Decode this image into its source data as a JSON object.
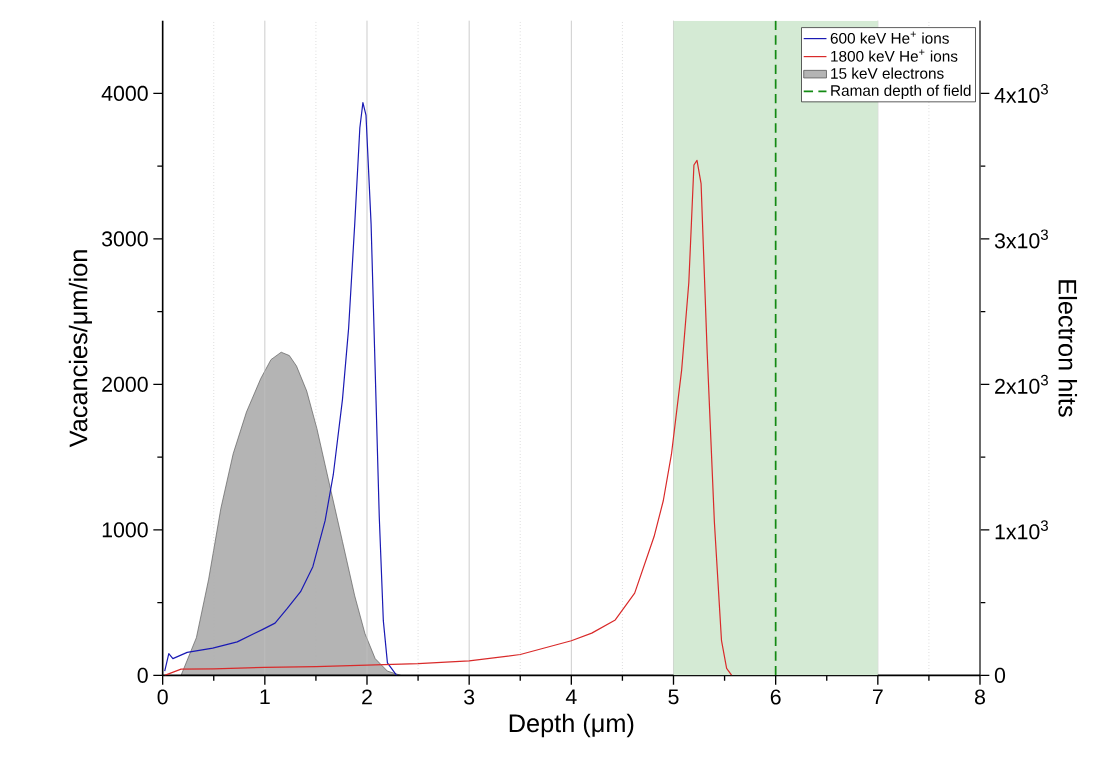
{
  "chart_data": {
    "type": "line",
    "xlabel": "Depth (μm)",
    "ylabel": "Vacancies/μm/ion",
    "y2label": "Electron hits",
    "xlim": [
      0,
      8
    ],
    "ylim": [
      0,
      4500
    ],
    "y2lim": [
      0,
      4500
    ],
    "xticks": [
      0,
      {
        "value": 0.5,
        "label": null
      },
      1,
      {
        "value": 1.5,
        "label": null
      },
      2,
      {
        "value": 2.5,
        "label": null
      },
      3,
      {
        "value": 3.5,
        "label": null
      },
      4,
      {
        "value": 4.5,
        "label": null
      },
      5,
      {
        "value": 5.5,
        "label": null
      },
      6,
      {
        "value": 6.5,
        "label": null
      },
      7,
      {
        "value": 7.5,
        "label": null
      },
      8
    ],
    "yticks": [
      0,
      {
        "value": 500,
        "label": null
      },
      1000,
      {
        "value": 1500,
        "label": null
      },
      2000,
      {
        "value": 2500,
        "label": null
      },
      3000,
      {
        "value": 3500,
        "label": null
      },
      4000
    ],
    "y2ticks": [
      0,
      {
        "value": 500,
        "label": null
      },
      {
        "value": 1000,
        "label": "1x10$^{3}$"
      },
      {
        "value": 1500,
        "label": null
      },
      {
        "value": 2000,
        "label": "2x10$^{3}$"
      },
      {
        "value": 2500,
        "label": null
      },
      {
        "value": 3000,
        "label": "3x10$^{3}$"
      },
      {
        "value": 3500,
        "label": null
      },
      {
        "value": 4000,
        "label": "4x10$^{3}$"
      }
    ],
    "grid": "x",
    "legend": "top right",
    "series": [
      {
        "name": "600 keV He$^{+}$ ions",
        "color": "#1a1ab4",
        "x": [
          0.02,
          0.06,
          0.1,
          0.24,
          0.49,
          0.73,
          0.98,
          1.1,
          1.22,
          1.35,
          1.47,
          1.59,
          1.67,
          1.76,
          1.82,
          1.88,
          1.93,
          1.96,
          1.99,
          2.04,
          2.08,
          2.12,
          2.16,
          2.2,
          2.29
        ],
        "values": [
          29,
          149,
          115,
          158,
          187,
          230,
          316,
          359,
          460,
          575,
          747,
          1063,
          1379,
          1897,
          2385,
          3103,
          3764,
          3937,
          3851,
          3103,
          2098,
          1092,
          374,
          86,
          0
        ]
      },
      {
        "name": "1800 keV He$^{+}$ ions",
        "color": "#d92a2a",
        "x": [
          0.02,
          0.18,
          0.5,
          1.0,
          1.5,
          2.0,
          2.5,
          3.0,
          3.5,
          4.0,
          4.2,
          4.43,
          4.62,
          4.81,
          4.9,
          4.98,
          5.08,
          5.15,
          5.2,
          5.23,
          5.27,
          5.33,
          5.4,
          5.47,
          5.52,
          5.57
        ],
        "values": [
          0,
          43,
          45,
          55,
          60,
          70,
          80,
          100,
          143,
          238,
          290,
          381,
          565,
          954,
          1200,
          1520,
          2100,
          2700,
          3508,
          3540,
          3380,
          2214,
          1056,
          238,
          48,
          0
        ]
      },
      {
        "name": "15 keV electrons",
        "type": "area",
        "axis": "y2",
        "color": "#b4b4b4",
        "x": [
          0.18,
          0.33,
          0.45,
          0.57,
          0.69,
          0.82,
          0.96,
          1.06,
          1.16,
          1.24,
          1.31,
          1.41,
          1.51,
          1.63,
          1.76,
          1.88,
          1.98,
          2.08,
          2.2,
          2.33
        ],
        "values": [
          0,
          259,
          661,
          1149,
          1523,
          1810,
          2040,
          2170,
          2221,
          2198,
          2126,
          1954,
          1695,
          1322,
          920,
          546,
          287,
          115,
          29,
          0
        ]
      },
      {
        "name": "Raman depth of field",
        "color": "#138a13",
        "line_style": "dashed",
        "x": [
          6,
          6
        ],
        "values": [
          0,
          4500
        ]
      }
    ],
    "bands": [
      {
        "axis": "x",
        "from": 5,
        "to": 7,
        "color": "#d4ead4"
      }
    ]
  }
}
